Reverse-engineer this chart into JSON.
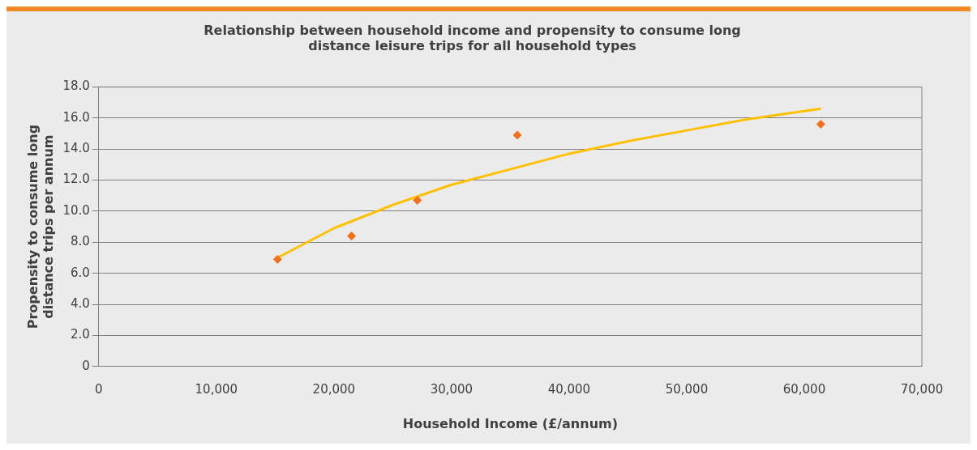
{
  "chart_data": {
    "type": "scatter",
    "title": [
      "Relationship between household income and propensity to consume long",
      "distance leisure trips for all household types"
    ],
    "xlabel": "Household Income (£/annum)",
    "ylabel": [
      "Propensity to consume long",
      "distance trips per annum"
    ],
    "series": [
      {
        "color": "#f07020",
        "marker": "diamond",
        "x": [
          15200,
          21500,
          27100,
          35600,
          61400
        ],
        "values": [
          6.9,
          8.4,
          10.7,
          14.9,
          15.6
        ]
      },
      {
        "type": "line",
        "color": "#ffc000",
        "marker": "none",
        "x": [
          15200,
          20000,
          25000,
          30000,
          35000,
          40000,
          45000,
          50000,
          55000,
          61400
        ],
        "values": [
          7.0,
          8.9,
          10.4,
          11.7,
          12.7,
          13.7,
          14.5,
          15.2,
          15.9,
          16.6
        ]
      }
    ],
    "xlim": [
      0,
      70000
    ],
    "xticks": [
      0,
      {
        "value": 10000,
        "label": "10,000"
      },
      {
        "value": 20000,
        "label": "20,000"
      },
      {
        "value": 30000,
        "label": "30,000"
      },
      {
        "value": 40000,
        "label": "40,000"
      },
      {
        "value": 50000,
        "label": "50,000"
      },
      {
        "value": 60000,
        "label": "60,000"
      },
      {
        "value": 70000,
        "label": "70,000"
      }
    ],
    "ylim": [
      0,
      18
    ],
    "yticks": [
      0,
      {
        "value": 2,
        "label": "2.0"
      },
      {
        "value": 4,
        "label": "4.0"
      },
      {
        "value": 6,
        "label": "6.0"
      },
      {
        "value": 8,
        "label": "8.0"
      },
      {
        "value": 10,
        "label": "10.0"
      },
      {
        "value": 12,
        "label": "12.0"
      },
      {
        "value": 14,
        "label": "14.0"
      },
      {
        "value": 16,
        "label": "16.0"
      },
      {
        "value": 18,
        "label": "18.0"
      }
    ],
    "grid": "y",
    "legend": false
  }
}
